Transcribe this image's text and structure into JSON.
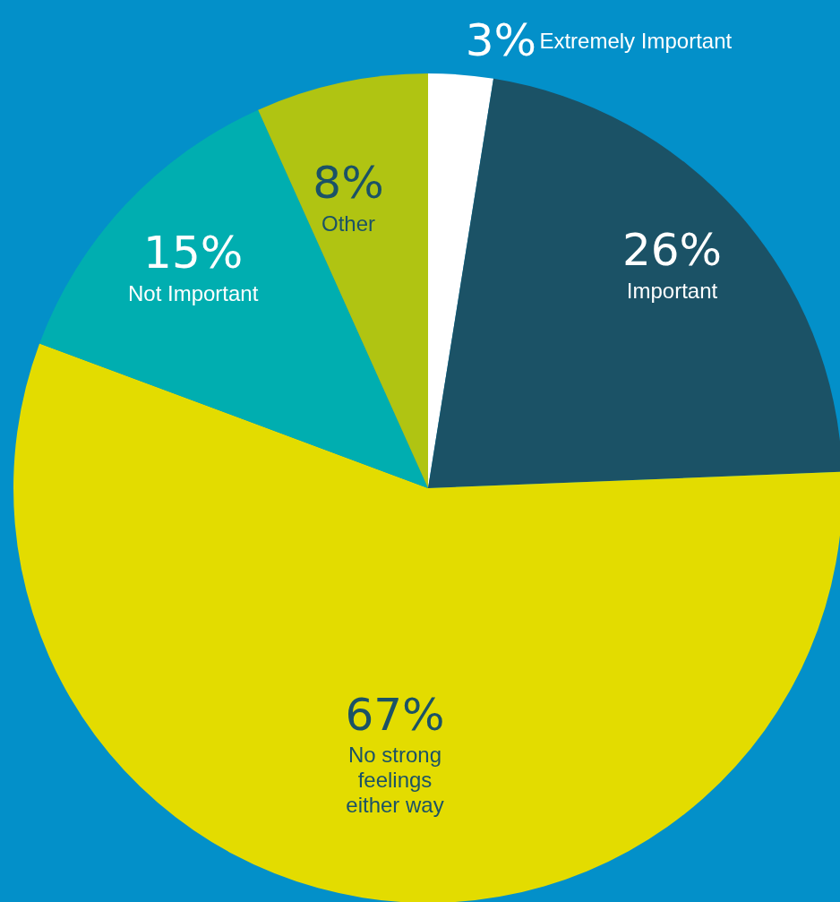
{
  "chart_data": {
    "type": "pie",
    "categories": [
      "Extremely Important",
      "Important",
      "No strong feelings either way",
      "Not Important",
      "Other"
    ],
    "values": [
      3,
      26,
      67,
      15,
      8
    ],
    "colors": [
      "#ffffff",
      "#1b5266",
      "#e3dc00",
      "#00aeb0",
      "#b0c412"
    ],
    "value_labels": [
      "3%",
      "26%",
      "67%",
      "15%",
      "8%"
    ],
    "legend": false
  }
}
